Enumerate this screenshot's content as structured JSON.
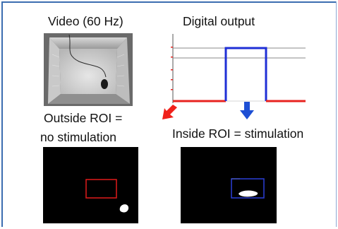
{
  "panels": {
    "video_title": "Video (60 Hz)",
    "output_title": "Digital output",
    "outside_label_line1": "Outside ROI =",
    "outside_label_line2": "no stimulation",
    "inside_label": "Inside ROI = stimulation"
  },
  "colors": {
    "frame_border": "#3b6db0",
    "signal_low": "#e8231f",
    "signal_high": "#1f2fd6",
    "outside_roi_box": "#e01b1b",
    "inside_roi_box": "#2b3fd8",
    "arrow_outside": "#f0201a",
    "arrow_inside": "#1d4fd4"
  },
  "icons": {
    "arrow_outside": "arrow-down-left-icon",
    "arrow_inside": "arrow-down-icon"
  },
  "signal": {
    "states": [
      "low",
      "high",
      "low"
    ]
  }
}
